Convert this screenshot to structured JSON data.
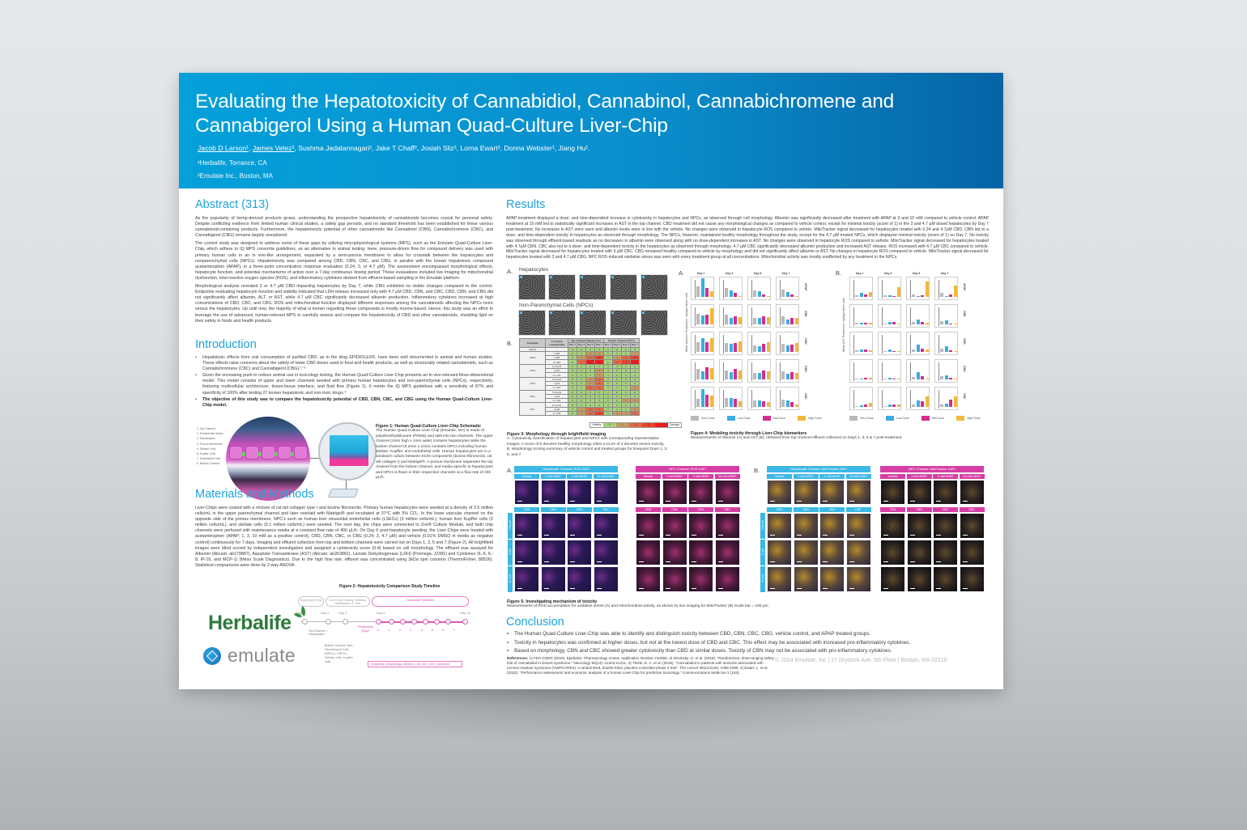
{
  "header": {
    "title": "Evaluating the Hepatotoxicity of Cannabidiol, Cannabinol, Cannabichromene and Cannabigerol Using a Human Quad-Culture Liver-Chip",
    "authors": [
      {
        "name": "Jacob D Larson",
        "sup": "1",
        "underline": true
      },
      {
        "name": "James Velez",
        "sup": "2",
        "underline": true
      },
      {
        "name": "Sushma Jadalannagari",
        "sup": "2"
      },
      {
        "name": "Jake T Chaff",
        "sup": "2"
      },
      {
        "name": "Josiah Sliz",
        "sup": "2"
      },
      {
        "name": "Lorna Ewart",
        "sup": "2"
      },
      {
        "name": "Donna Webster",
        "sup": "1"
      },
      {
        "name": "Jiang Hu",
        "sup": "1"
      }
    ],
    "authors_line_rest": ", Sushma Jadalannagari², Jake T Chaff², Josiah Sliz², Lorna Ewart², Donna Webster¹, Jiang Hu¹.",
    "author1": "Jacob D Larson¹",
    "author2": "James Velez²",
    "affiliation1": "¹Herbalife, Torrance, CA",
    "affiliation2": "²Emulate Inc., Boston, MA",
    "gradient_colors": [
      "#03a0da",
      "#0565a6"
    ]
  },
  "abstract": {
    "heading": "Abstract (313)",
    "paragraphs": [
      "As the popularity of hemp-derived products grows, understanding the prospective hepatotoxicity of cannabinoids becomes crucial for personal safety. Despite conflicting evidence from limited human clinical studies, a safety gap persists, and no standard threshold has been established for these various cannabinoid-containing products. Furthermore, the hepatotoxicity potential of other cannabinoids like Cannabinol (CBN), Cannabichromene (CBC), and Cannabigerol (CBG) remains largely unexplored.",
      "The current study was designed to address some of these gaps by utilizing microphysiological systems (MPS), such as the Emulate Quad-Culture Liver-Chip, which adhere to IQ MPS consortia guidelines, as an alternative to animal testing. Here, pressure-driven flow for compound delivery was used with primary human cells in an in vivo-like arrangement, separated by a semi-porous membrane to allow for crosstalk between the hepatocytes and nonparenchymal cells (NPCs). Hepatotoxicity was compared among CBD, CBN, CBC, and CBG, in parallel with the known hepatotoxic compound acetaminophen (APAP), in a three-point concentration response evaluation (0.24, 3, or 4.7 µM). The assessment encompassed morphological effects, hepatocyte function, and potential mechanisms of action over a 7-day continuous dosing period. These evaluations included live imaging for mitochondrial dysfunction, total reactive oxygen species (ROS), and inflammatory cytokines derived from effluent-based sampling in the Emulate platform.",
      "Morphological analysis revealed 3 or 4.7 µM CBD impacting hepatocytes by Day 7, while CBG exhibited no visible changes compared to the control. Endpoints evaluating hepatocyte function and viability indicated that LDH release increased only with 4.7 µM CBD, CBN, and CBC. CBD, CBN, and CBG did not significantly affect albumin, ALT, or AST, while 4.7 µM CBC significantly decreased albumin production. Inflammatory cytokines increased at high concentrations of CBD, CBC, and CBG. ROS and mitochondrial function displayed different responses among the cannabinoids affecting the NPCs more versus the hepatocytes. Up until now, the majority of what is known regarding these compounds is mostly murine-based. Hence, this study was an effort to leverage the use of advanced, human-relevant MPS to carefully assess and compare the hepatotoxicity of CBD and other cannabinoids, shedding light on their safety in foods and health products."
    ]
  },
  "introduction": {
    "heading": "Introduction",
    "bullets": [
      "Hepatotoxic effects from oral consumption of purified CBD, as in the drug EPIDIOLEX®, have been well documented in animal and human studies. These effects raise concerns about the safety of lower CBD doses used in food and health products, as well as structurally related cannabinoids, such as Cannabichromene (CBC) and Cannabigerol (CBG).¹⁻³",
      "Given the increasing push to reduce animal use in toxicology testing, the Human Quad-Culture Liver-Chip presents an in vivo-relevant three-dimensional model. This model consists of upper and lower channels seeded with primary human hepatocytes and non-parenchymal cells (NPCs), respectively, featuring multicellular architecture, tissue-tissue interface, and fluid flow (Figure 1). It meets the IQ MPS guidelines with a sensitivity of 87% and specificity of 100% after testing 27 known hepatotoxic and non-toxic drugs.⁴",
      "The objective of this study was to compare the hepatotoxicity potential of CBD, CBN, CBC, and CBG using the Human Quad-Culture Liver-Chip model."
    ],
    "figure1": {
      "legend": [
        "1. Top Channel",
        "2. Extracellular Matrix",
        "3. Hepatocytes",
        "4. Porous Membrane",
        "5. Stellate Cells",
        "6. Kupffer Cells",
        "7. Endothelial Cells",
        "8. Bottom Channel"
      ],
      "caption_title": "Figure 1: Human Quad-Culture Liver-Chip Schematic",
      "caption": "The Human Quad-Culture Liver-Chip (Emulate, MA) is made of polydimethylsiloxane (PDMS) and split into two channels. The upper channel (1mm high x 1mm wide) contains hepatocytes while the bottom channel (0.2mm x 1mm) contains NPCs including human stellate, Kupffer, and endothelial cells. Human hepatocytes are in a sandwich culture between ECM components (bovine fibronectin, rat tail collagen I) and Matrigel®. A porous membrane separates the top channel from the bottom channel, and media specific to hepatocytes and NPCs is flown in their respective channels at a flow rate of 400 µL/h."
    }
  },
  "methods": {
    "heading": "Materials and Methods",
    "text": "Liver-Chips were coated with a mixture of rat tail collagen type I and bovine fibronectin. Primary human hepatocytes were seeded at a density of 3.5 million cells/mL in the upper parenchymal channel and later overlaid with Matrigel® and incubated at 37°C with 5% CO₂. In the lower vascular channel on the opposite side of the porous membrane, NPC's such as human liver sinusoidal endothelial cells (LSECs) (3 million cells/mL), human liver Kupffer cells (2 million cells/mL), and stellate cells (0.1 million cells/mL) were seeded. The next day, the chips were connected to Zoë® Culture Module, and both chip channels were perfused with maintenance media at a constant flow rate of 400 µL/h. On Day 6 post-hepatocyte seeding, the Liver-Chips were treated with acetaminophen (APAP; 1, 3, 10 mM as a positive control), CBD, CBN, CBC, or CBG (0.24, 3, 4.7 µM) and vehicle (0.01% DMSO in media as negative control) continuously for 7 days. Imaging and effluent collection from top and bottom channels were carried out on Days 1, 3, 5 and 7 (Figure 2). All brightfield images were blind scored by independent investigators and assigned a cytotoxicity score (0-4) based on cell morphology. The effluent was assayed for Albumin (Abcam; ab179887), Aspartate Transaminase (AST) (Abcam; ab263881), Lactate Dehydrogenase (LDH) (Promega; J2381) and Cytokines (IL-6, IL-8, IP-10, and MCP-1) (Meso Scale Diagnostics). Due to the high flow rate, effluent was concentrated using 3kDa spin columns (ThermoFisher, 88526). Statistical comparisons were done by 2-way ANOVA.",
    "figure2": {
      "title": "Figure 2: Hepatotoxicity Comparison Study Timeline",
      "phases": [
        "Experiment Prep",
        "Liver-Chip Coating, Seeding, Stabilization & Flow",
        "Compound Treatment"
      ],
      "days": [
        "Day -3",
        "Day 0",
        "Day 2",
        "Day 6",
        "Day 13"
      ],
      "timepoints_label": "Timepoints (Day)",
      "timepoints": [
        "0",
        "1",
        "2",
        "3",
        "4",
        "5",
        "6",
        "7"
      ],
      "top_channel": "Top Channel: • Hepatocytes",
      "bottom_channel": "Bottom Channel: Non-Parenchymal Cells (NPCs) • LSECs • Stellate cells • Kupffer cells",
      "endpoints": "Endpoints: Morphology, Albumin, LDH, ALT, AST, Cytokines"
    }
  },
  "logos": {
    "herbalife": "Herbalife",
    "emulate": "emulate"
  },
  "results": {
    "heading": "Results",
    "text": "APAP treatment displayed a dose- and time-dependent increase in cytotoxicity in hepatocytes and NPCs, as observed through cell morphology. Albumin was significantly decreased after treatment with APAP at 3 and 10 mM compared to vehicle control. APAP treatment at 10 mM led to statistically significant increases in AST in the top channel. CBD treatment did not cause any morphological changes as compared to vehicle control, except for minimal toxicity (score of 1) in the 3 and 4.7 µM dosed hepatocytes by Day 7 post-treatment. No increases in AST were seen and albumin levels were in line with the vehicle. No changes were observed in hepatocyte ROS compared to vehicle. MitoTracker signal decreased for hepatocytes treated with 0.24 and 4.7µM CBD. CBN led to a dose- and time-dependent toxicity in hepatocytes as observed through morphology. The NPCs, however, maintained healthy morphology throughout the study, except for the 4.7 µM treated NPCs, which displayed minimal toxicity (score of 1) on Day 7. No toxicity was observed through effluent-based readouts as no decreases in albumin were observed along with no dose-dependent increases in AST. No changes were observed in hepatocyte ROS compared to vehicle. MitoTracker signal decreased for hepatocytes treated with 4.7µM CBN. CBC also led to a dose- and time-dependent toxicity in the hepatocytes as observed through morphology. 4.7 µM CBC significantly decreased albumin production and increased AST release. ROS increased with 4.7 µM CBC compared to vehicle. MitoTracker signal decreased for hepatocytes treated with 3 µM CBC. CBG remained healthy compared to vehicle by morphology and did not significantly affect albumin or AST. No changes in hepatocyte ROS compared to vehicle. MitoTracker signal decreased for hepatocytes treated with 3 and 4.7 µM CBG. NPC ROS-induced oxidative stress was seen with every treatment group at all concentrations. Mitochondrial activity was mostly unaffected by any treatment in the NPCs.",
    "figure3": {
      "panel_a": "A.",
      "panel_b": "B.",
      "hepatocytes_label": "Hepatocytes",
      "npc_label": "Non-Parenchymal Cells (NPCs)",
      "table": {
        "headers": [
          "Treatment",
          "Corrected Concentration",
          "Top Channel (Hepatocytes)",
          "Bottom Channel (NPCs)"
        ],
        "days": [
          "Day 1",
          "Day 3",
          "Day 5",
          "Day 7"
        ],
        "rows": [
          {
            "treatment": "Vehicle",
            "conc": "-",
            "top": [
              0,
              0,
              0,
              0
            ],
            "bottom": [
              0,
              0,
              0,
              0
            ]
          },
          {
            "treatment": "APAP",
            "conc": "1 mM",
            "top": [
              0,
              0,
              1,
              1
            ],
            "bottom": [
              0,
              0,
              0,
              1
            ]
          },
          {
            "treatment": "",
            "conc": "3 mM",
            "top": [
              0,
              1,
              2,
              3
            ],
            "bottom": [
              0,
              1,
              2,
              3
            ]
          },
          {
            "treatment": "",
            "conc": "10 mM",
            "top": [
              0,
              2,
              4,
              4
            ],
            "bottom": [
              0,
              2,
              3,
              4
            ]
          },
          {
            "treatment": "CBD",
            "conc": "0.24 µM",
            "top": [
              0,
              0,
              0,
              0
            ],
            "bottom": [
              0,
              0,
              0,
              0
            ]
          },
          {
            "treatment": "",
            "conc": "3 µM",
            "top": [
              0,
              0,
              0,
              1
            ],
            "bottom": [
              0,
              0,
              0,
              0
            ]
          },
          {
            "treatment": "",
            "conc": "4.7 µM",
            "top": [
              0,
              0,
              0,
              1
            ],
            "bottom": [
              0,
              0,
              0,
              0
            ]
          },
          {
            "treatment": "CBN",
            "conc": "0.24 µM",
            "top": [
              0,
              0,
              1,
              2
            ],
            "bottom": [
              0,
              0,
              0,
              0
            ]
          },
          {
            "treatment": "",
            "conc": "3 µM",
            "top": [
              0,
              0,
              1,
              2
            ],
            "bottom": [
              0,
              0,
              0,
              0
            ]
          },
          {
            "treatment": "",
            "conc": "4.7 µM",
            "top": [
              0,
              0,
              2,
              2
            ],
            "bottom": [
              0,
              0,
              0,
              1
            ]
          },
          {
            "treatment": "CBG",
            "conc": "0.24 µM",
            "top": [
              0,
              0,
              0,
              0
            ],
            "bottom": [
              0,
              0,
              0,
              0
            ]
          },
          {
            "treatment": "",
            "conc": "3 µM",
            "top": [
              0,
              0,
              0,
              0
            ],
            "bottom": [
              0,
              0,
              0,
              0
            ]
          },
          {
            "treatment": "",
            "conc": "4.7 µM",
            "top": [
              0,
              0,
              0,
              0
            ],
            "bottom": [
              0,
              0,
              1,
              1
            ]
          },
          {
            "treatment": "CBC",
            "conc": "0.24 µM",
            "top": [
              0,
              0,
              0,
              0
            ],
            "bottom": [
              0,
              0,
              0,
              0
            ]
          },
          {
            "treatment": "",
            "conc": "3 µM",
            "top": [
              0,
              1,
              2,
              2
            ],
            "bottom": [
              0,
              0,
              0,
              1
            ]
          },
          {
            "treatment": "",
            "conc": "4.7 µM",
            "top": [
              0,
              1,
              2,
              3
            ],
            "bottom": [
              0,
              1,
              1,
              2
            ]
          }
        ],
        "legend": [
          "Healthy",
          "0",
          "1",
          "2",
          "3",
          "4",
          "Damage"
        ],
        "score_colors": [
          "#a5d27c",
          "#c49a62",
          "#df6a47",
          "#e8432d",
          "#ee1c1c"
        ]
      },
      "caption_title": "Figure 3: Morphology through brightfield imaging",
      "caption_a": "A.  Cytotoxicity classification of hepatocytes and NPCs with corresponding representative images. A score of 0 denotes healthy morphology while a score of 4 denotes severe toxicity.",
      "caption_b": "B.  Morphology scoring summary of vehicle control and treated groups for timepoint Days 1, 3, 5, and 7."
    },
    "figure4": {
      "panel_a": "A.",
      "panel_b": "B.",
      "days": [
        "Day 1",
        "Day 3",
        "Day 5",
        "Day 7"
      ],
      "rows": [
        "APAP",
        "CBD",
        "CBN",
        "CBG",
        "CBC"
      ],
      "ylabel_a": "Mean Albumin Production: ng/day/million cells",
      "ylabel_b": "Mean AST Production: ng/day/million cells",
      "legend": [
        "Zero Dose",
        "Low Dose",
        "Mid Dose",
        "High Dose"
      ],
      "colors": [
        "#b9b9bb",
        "#3aaee0",
        "#d62c8d",
        "#f2b83a"
      ],
      "caption_title": "Figure 4: Modeling toxicity through Liver-Chip biomarkers",
      "caption": "Measurements of Albumin (A) and AST (B), obtained from top channel effluent collected on Days 1, 3, 5 & 7 post-treatment."
    },
    "figure5": {
      "panel_a": "A.",
      "panel_b": "B.",
      "a_hep_header": "Hepatocyte Channel: ROS DAPI",
      "a_npc_header": "NPC Channel: ROS DAPI",
      "b_hep_header": "Hepatocyte Channel: MitoTracker DAPI",
      "b_npc_header": "NPC Channel: MitoTracker DAPI",
      "apap_cols": [
        "Vehicle",
        "1 mM APAP",
        "3 mM APAP",
        "10 mM APAP"
      ],
      "compound_cols": [
        "CBD",
        "CBN",
        "CBG",
        "CBC"
      ],
      "rows": [
        "0.24 µM",
        "3 µM",
        "4.7 µM"
      ],
      "caption_title": "Figure 5: Investigating mechanism of toxicity",
      "caption": "Measurements of ROS accumulation for oxidative stress (A) and mitochondrial activity, as shown by live imaging for MitoTracker (B) Scale bar = 100 µm."
    }
  },
  "conclusion": {
    "heading": "Conclusion",
    "bullets": [
      "The Human Quad-Culture Liver-Chip was able to identify and distinguish toxicity between CBD, CBN, CBC, CBG, vehicle control, and APAP treated groups.",
      "Toxicity in hepatocytes was confirmed at higher doses, but not at the lowest dose of CBD and CBC. This effect may be associated with increased pro-inflammatory cytokines.",
      "Based on morphology, CBN and CBC showed greater cytotoxicity than CBD at similar doses. Toxicity of CBN may not be associated with pro-inflammatory cytokines."
    ]
  },
  "references": {
    "label": "References:",
    "text": " 1) FDA-CDER (2018). Epidiolex: Pharmacology review. Application Number 210365. 2) Devinsky, O. et al. (2018). \"Randomized, dose-ranging safety trial of cannabidiol in Dravet syndrome.\" Neurology 90(14): e1204-e1211. 3) Thiele, E. A. et al. (2018). \"Cannabidiol in patients with seizures associated with Lennox-Gastaut syndrome (GWPCARE4): a randomized, double-blind, placebo-controlled phase 3 trial.\" The Lancet 391(10125): 1085-1096. 4) Ewart, L. et al. (2022). \"Performance assessment and economic analysis of a human Liver-Chip for predictive toxicology.\" Communications Medicine 2 (154)."
  },
  "footer": {
    "copyright": "© 2024 Emulate, Inc | 27 Drydock Ave. 5th Floor | Boston, MA 02210"
  }
}
